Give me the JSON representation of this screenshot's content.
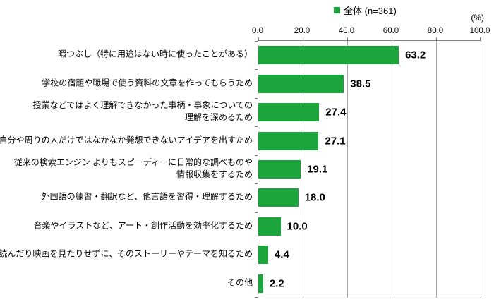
{
  "legend": {
    "label": "全体 (n=361)",
    "marker_color": "#1ca53c"
  },
  "unit_label": "(%)",
  "colors": {
    "bar": "#1ca53c",
    "grid": "#a6a6a6",
    "axis": "#7f7f7f",
    "text": "#000000"
  },
  "chart_data": {
    "type": "bar",
    "orientation": "horizontal",
    "title": "",
    "series_name": "全体 (n=361)",
    "xlabel": "(%)",
    "xlim": [
      0,
      100
    ],
    "x_ticks": [
      "0.0",
      "20.0",
      "40.0",
      "60.0",
      "80.0",
      "100.0"
    ],
    "grid": "vertical",
    "legend_position": "top",
    "categories": [
      "暇つぶし（特に用途はない時に使ったことがある）",
      "学校の宿題や職場で使う資料の文章を作ってもらうため",
      "授業などではよく理解できなかった事柄・事象についての\n理解を深めるため",
      "自分や周りの人だけではなかなか発想できないアイデアを出すため",
      "従来の検索エンジン よりもスピーディーに日常的な調べものや\n情報収集をするため",
      "外国語の練習・翻訳など、他言語を習得・理解するため",
      "音楽やイラストなど、アート・創作活動を効率化するため",
      "本を読んだり映画を見たりせずに、そのストーリーやテーマを知るため",
      "その他"
    ],
    "values": [
      63.2,
      38.5,
      27.4,
      27.1,
      19.1,
      18.0,
      10.0,
      4.4,
      2.2
    ],
    "value_labels": [
      "63.2",
      "38.5",
      "27.4",
      "27.1",
      "19.1",
      "18.0",
      "10.0",
      "4.4",
      "2.2"
    ]
  }
}
